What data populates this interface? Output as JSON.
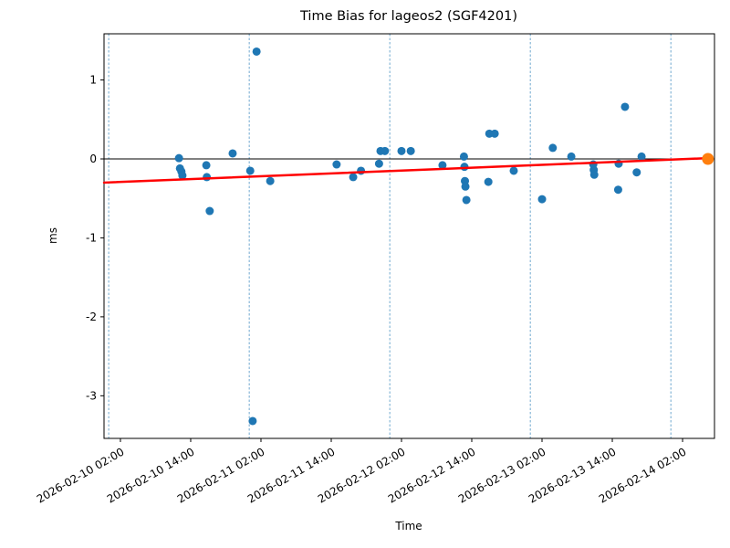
{
  "chart_data": {
    "type": "scatter",
    "title": "Time Bias for lageos2 (SGF4201)",
    "xlabel": "Time",
    "ylabel": "ms",
    "x_tick_labels": [
      "2026-02-10 02:00",
      "2026-02-10 14:00",
      "2026-02-11 02:00",
      "2026-02-11 14:00",
      "2026-02-12 02:00",
      "2026-02-12 14:00",
      "2026-02-13 02:00",
      "2026-02-13 14:00",
      "2026-02-14 02:00"
    ],
    "y_ticks": [
      "1",
      "0",
      "-1",
      "-2",
      "-3"
    ],
    "y_tick_values": [
      1,
      0,
      -1,
      -2,
      -3
    ],
    "xlim": [
      "2026-02-09 23:12",
      "2026-02-14 07:27"
    ],
    "ylim": [
      -3.54,
      1.585
    ],
    "day_gridlines": [
      "2026-02-10 00:00",
      "2026-02-11 00:00",
      "2026-02-12 00:00",
      "2026-02-13 00:00",
      "2026-02-14 00:00"
    ],
    "zero_line_value": 0,
    "legend_position": "none",
    "grid": "vertical-dashed-day-boundaries",
    "series": [
      {
        "name": "time-bias-observations",
        "color": "#1f77b4",
        "marker_radius": 4.5,
        "points": [
          [
            "2026-02-10 12:00",
            0.01
          ],
          [
            "2026-02-10 12:10",
            -0.12
          ],
          [
            "2026-02-10 12:25",
            -0.16
          ],
          [
            "2026-02-10 12:35",
            -0.21
          ],
          [
            "2026-02-10 16:40",
            -0.08
          ],
          [
            "2026-02-10 16:45",
            -0.23
          ],
          [
            "2026-02-10 17:15",
            -0.66
          ],
          [
            "2026-02-10 21:10",
            0.07
          ],
          [
            "2026-02-11 00:10",
            -0.15
          ],
          [
            "2026-02-11 00:35",
            -3.32
          ],
          [
            "2026-02-11 01:15",
            1.36
          ],
          [
            "2026-02-11 03:35",
            -0.28
          ],
          [
            "2026-02-11 14:55",
            -0.07
          ],
          [
            "2026-02-11 17:45",
            -0.23
          ],
          [
            "2026-02-11 19:05",
            -0.15
          ],
          [
            "2026-02-11 22:10",
            -0.06
          ],
          [
            "2026-02-11 22:25",
            0.1
          ],
          [
            "2026-02-11 23:10",
            0.1
          ],
          [
            "2026-02-12 02:00",
            0.1
          ],
          [
            "2026-02-12 03:35",
            0.1
          ],
          [
            "2026-02-12 09:00",
            -0.08
          ],
          [
            "2026-02-12 12:40",
            0.03
          ],
          [
            "2026-02-12 12:45",
            -0.1
          ],
          [
            "2026-02-12 12:50",
            -0.28
          ],
          [
            "2026-02-12 12:55",
            -0.35
          ],
          [
            "2026-02-12 13:05",
            -0.52
          ],
          [
            "2026-02-12 16:50",
            -0.29
          ],
          [
            "2026-02-12 17:00",
            0.32
          ],
          [
            "2026-02-12 17:55",
            0.32
          ],
          [
            "2026-02-12 21:10",
            -0.15
          ],
          [
            "2026-02-13 02:00",
            -0.51
          ],
          [
            "2026-02-13 03:50",
            0.14
          ],
          [
            "2026-02-13 07:00",
            0.03
          ],
          [
            "2026-02-13 10:45",
            -0.07
          ],
          [
            "2026-02-13 10:50",
            -0.14
          ],
          [
            "2026-02-13 10:55",
            -0.2
          ],
          [
            "2026-02-13 15:00",
            -0.39
          ],
          [
            "2026-02-13 15:05",
            -0.06
          ],
          [
            "2026-02-13 16:10",
            0.66
          ],
          [
            "2026-02-13 18:10",
            -0.17
          ],
          [
            "2026-02-13 19:00",
            0.03
          ]
        ]
      },
      {
        "name": "endpoint-reference",
        "color": "#ff7f0e",
        "marker_radius": 6.5,
        "points": [
          [
            "2026-02-14 06:20",
            0.0
          ]
        ]
      }
    ],
    "trend_line": {
      "name": "linear-fit",
      "color": "#ff0000",
      "width": 2.5,
      "from": [
        "2026-02-09 23:12",
        -0.3
      ],
      "to": [
        "2026-02-14 06:20",
        0.01
      ]
    },
    "colors": {
      "scatter": "#1f77b4",
      "trend": "#ff0000",
      "endpoint": "#ff7f0e",
      "day_gridline": "#6fa8cf",
      "zero_line": "#000000",
      "spine": "#000000"
    }
  }
}
